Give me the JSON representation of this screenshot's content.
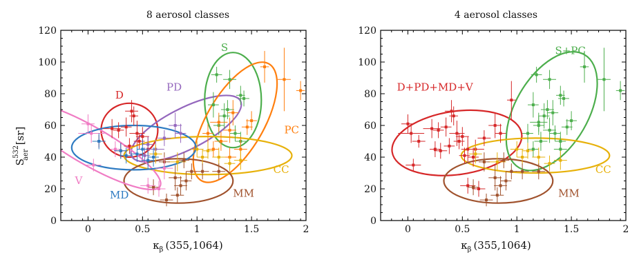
{
  "axis": {
    "ylabel_main": "S",
    "ylabel_sub": "aer",
    "ylabel_sup": "532",
    "ylabel_unit": "[sr]",
    "xlabel_main": "κ",
    "xlabel_sub": "β",
    "xlabel_rest": "(355,1064)"
  },
  "colors": {
    "D": "#d62728",
    "PD": "#9467bd",
    "S": "#4cae4c",
    "PC": "#ff7f0e",
    "CC": "#e7b10a",
    "MM": "#a0522d",
    "V": "#f07cc4",
    "MD": "#2e7bc2"
  },
  "chart_data": [
    {
      "type": "scatter",
      "title": "8 aerosol classes",
      "xlim": [
        -0.25,
        2.0
      ],
      "ylim": [
        0,
        120
      ],
      "xticks": [
        "0",
        "0.5",
        "1",
        "1.5",
        "2"
      ],
      "xtick_values": [
        0,
        0.5,
        1,
        1.5,
        2
      ],
      "yticks": [
        "0",
        "20",
        "40",
        "60",
        "80",
        "100",
        "120"
      ],
      "ytick_values": [
        0,
        20,
        40,
        60,
        80,
        100,
        120
      ],
      "classes": [
        {
          "label": "D",
          "color": "D",
          "label_pos": [
            0.25,
            77
          ],
          "ellipse": {
            "cx": 0.38,
            "cy": 57,
            "rx": 0.26,
            "ry": 17,
            "angle": 0
          },
          "points": [
            [
              0.1,
              50,
              0.06,
              4
            ],
            [
              0.22,
              58,
              0.08,
              6
            ],
            [
              0.28,
              57,
              0.05,
              5
            ],
            [
              0.3,
              44,
              0.06,
              5
            ],
            [
              0.35,
              59,
              0.05,
              6
            ],
            [
              0.4,
              69,
              0.06,
              7
            ],
            [
              0.45,
              55,
              0.07,
              8
            ],
            [
              0.5,
              53,
              0.06,
              6
            ],
            [
              0.47,
              50,
              0.05,
              5
            ],
            [
              0.38,
              47,
              0.05,
              5
            ],
            [
              0.42,
              66,
              0.04,
              6
            ],
            [
              0.55,
              45,
              0.06,
              8
            ]
          ]
        },
        {
          "label": "PD",
          "color": "PD",
          "label_pos": [
            0.72,
            82
          ],
          "ellipse": {
            "cx": 0.9,
            "cy": 58,
            "rx": 0.56,
            "ry": 13,
            "angle": 27
          },
          "points": [
            [
              0.55,
              48,
              0.05,
              5
            ],
            [
              0.62,
              45,
              0.08,
              6
            ],
            [
              0.7,
              52,
              0.06,
              5
            ],
            [
              0.8,
              60,
              0.06,
              8
            ],
            [
              0.85,
              55,
              0.05,
              6
            ],
            [
              0.52,
              41,
              0.05,
              5
            ]
          ]
        },
        {
          "label": "S",
          "color": "S",
          "label_pos": [
            1.22,
            107
          ],
          "ellipse": {
            "cx": 1.33,
            "cy": 76,
            "rx": 0.26,
            "ry": 30,
            "angle": 0
          },
          "points": [
            [
              1.18,
              92,
              0.05,
              5
            ],
            [
              1.3,
              89,
              0.06,
              6
            ],
            [
              1.4,
              79,
              0.04,
              6
            ],
            [
              1.43,
              77,
              0.05,
              5
            ],
            [
              1.15,
              73,
              0.05,
              8
            ],
            [
              1.2,
              60,
              0.05,
              6
            ],
            [
              1.35,
              55,
              0.05,
              5
            ],
            [
              1.25,
              66,
              0.05,
              8
            ],
            [
              1.4,
              50,
              0.05,
              6
            ],
            [
              1.28,
              70,
              0.06,
              6
            ]
          ]
        },
        {
          "label": "PC",
          "color": "PC",
          "label_pos": [
            1.8,
            55
          ],
          "ellipse": {
            "cx": 1.35,
            "cy": 62,
            "rx": 0.62,
            "ry": 18,
            "angle": 60
          },
          "points": [
            [
              1.62,
              97,
              0.04,
              10
            ],
            [
              1.8,
              89,
              0.06,
              20
            ],
            [
              1.95,
              82,
              0.04,
              6
            ],
            [
              1.2,
              62,
              0.08,
              6
            ],
            [
              1.3,
              57,
              0.06,
              8
            ],
            [
              1.1,
              55,
              0.05,
              6
            ],
            [
              1.22,
              50,
              0.06,
              6
            ],
            [
              1.46,
              59,
              0.05,
              5
            ],
            [
              1.4,
              45,
              0.06,
              8
            ],
            [
              1.3,
              40,
              0.06,
              6
            ],
            [
              1.33,
              68,
              0.05,
              8
            ],
            [
              1.15,
              45,
              0.05,
              5
            ],
            [
              1.5,
              63,
              0.05,
              6
            ]
          ]
        },
        {
          "label": "CC",
          "color": "CC",
          "label_pos": [
            1.7,
            30
          ],
          "ellipse": {
            "cx": 1.1,
            "cy": 41,
            "rx": 0.77,
            "ry": 12,
            "angle": 0
          },
          "points": [
            [
              0.62,
              42,
              0.06,
              6
            ],
            [
              0.82,
              37,
              0.08,
              6
            ],
            [
              1.0,
              45,
              0.06,
              5
            ],
            [
              1.1,
              44,
              0.05,
              5
            ],
            [
              1.2,
              40,
              0.06,
              6
            ],
            [
              1.3,
              36,
              0.05,
              5
            ],
            [
              1.4,
              38,
              0.06,
              6
            ],
            [
              1.05,
              40,
              0.05,
              5
            ]
          ]
        },
        {
          "label": "MM",
          "color": "MM",
          "label_pos": [
            1.33,
            15
          ],
          "ellipse": {
            "cx": 0.83,
            "cy": 25,
            "rx": 0.5,
            "ry": 14,
            "angle": 0
          },
          "points": [
            [
              0.6,
              21,
              0.05,
              5
            ],
            [
              0.72,
              13,
              0.06,
              4
            ],
            [
              0.8,
              27,
              0.06,
              8
            ],
            [
              0.85,
              22,
              0.06,
              6
            ],
            [
              0.9,
              25,
              0.05,
              6
            ],
            [
              0.95,
              31,
              0.05,
              5
            ],
            [
              0.82,
              16,
              0.06,
              5
            ],
            [
              0.7,
              37,
              0.05,
              6
            ],
            [
              1.05,
              31,
              0.06,
              5
            ],
            [
              1.2,
              31,
              0.06,
              5
            ],
            [
              0.88,
              38,
              0.05,
              5
            ]
          ]
        },
        {
          "label": "V",
          "color": "V",
          "label_pos": [
            -0.12,
            23
          ],
          "ellipse": {
            "cx": 0.02,
            "cy": 47,
            "rx": 0.74,
            "ry": 12,
            "angle": -30
          },
          "points": [
            [
              0.0,
              61,
              0.06,
              6
            ],
            [
              0.03,
              55,
              0.12,
              6
            ],
            [
              0.05,
              35,
              0.07,
              4
            ],
            [
              0.55,
              22,
              0.07,
              5
            ],
            [
              0.7,
              33,
              0.08,
              7
            ],
            [
              0.65,
              20,
              0.06,
              5
            ],
            [
              0.25,
              45,
              0.05,
              5
            ]
          ]
        },
        {
          "label": "MD",
          "color": "MD",
          "label_pos": [
            0.2,
            14
          ],
          "ellipse": {
            "cx": 0.42,
            "cy": 46,
            "rx": 0.57,
            "ry": 14,
            "angle": 0
          },
          "points": [
            [
              0.1,
              50,
              0.06,
              5
            ],
            [
              0.3,
              44,
              0.06,
              5
            ],
            [
              0.45,
              42,
              0.06,
              5
            ],
            [
              0.5,
              45,
              0.05,
              6
            ],
            [
              0.55,
              38,
              0.06,
              6
            ],
            [
              0.6,
              40,
              0.05,
              6
            ],
            [
              0.35,
              41,
              0.06,
              5
            ]
          ]
        }
      ]
    },
    {
      "type": "scatter",
      "title": "4 aerosol classes",
      "xlim": [
        -0.25,
        2.0
      ],
      "ylim": [
        0,
        120
      ],
      "xticks": [
        "0",
        "0.5",
        "1",
        "1.5",
        "2"
      ],
      "xtick_values": [
        0,
        0.5,
        1,
        1.5,
        2
      ],
      "yticks": [
        "0",
        "20",
        "40",
        "60",
        "80",
        "100",
        "120"
      ],
      "ytick_values": [
        0,
        20,
        40,
        60,
        80,
        100,
        120
      ],
      "classes": [
        {
          "label": "D+PD+MD+V",
          "color": "D",
          "label_pos": [
            -0.1,
            82
          ],
          "ellipse": {
            "cx": 0.45,
            "cy": 49,
            "rx": 0.6,
            "ry": 20,
            "angle": 8
          },
          "points": [
            [
              0.0,
              61,
              0.06,
              6
            ],
            [
              0.03,
              55,
              0.12,
              6
            ],
            [
              0.05,
              35,
              0.07,
              4
            ],
            [
              0.1,
              50,
              0.06,
              4
            ],
            [
              0.22,
              58,
              0.08,
              6
            ],
            [
              0.28,
              57,
              0.05,
              5
            ],
            [
              0.3,
              44,
              0.06,
              5
            ],
            [
              0.35,
              59,
              0.05,
              6
            ],
            [
              0.4,
              69,
              0.06,
              7
            ],
            [
              0.45,
              55,
              0.07,
              8
            ],
            [
              0.5,
              53,
              0.06,
              6
            ],
            [
              0.47,
              50,
              0.05,
              5
            ],
            [
              0.38,
              47,
              0.05,
              5
            ],
            [
              0.42,
              66,
              0.04,
              6
            ],
            [
              0.55,
              45,
              0.06,
              8
            ],
            [
              0.55,
              22,
              0.07,
              5
            ],
            [
              0.62,
              45,
              0.08,
              6
            ],
            [
              0.7,
              52,
              0.06,
              5
            ],
            [
              0.8,
              60,
              0.06,
              8
            ],
            [
              0.85,
              55,
              0.05,
              6
            ],
            [
              0.52,
              41,
              0.05,
              5
            ],
            [
              0.6,
              40,
              0.05,
              6
            ],
            [
              0.25,
              45,
              0.05,
              5
            ],
            [
              0.95,
              76,
              0.04,
              12
            ],
            [
              0.65,
              20,
              0.06,
              5
            ]
          ]
        },
        {
          "label": "S+PC",
          "color": "S",
          "label_pos": [
            1.35,
            105
          ],
          "ellipse": {
            "cx": 1.32,
            "cy": 69,
            "rx": 0.6,
            "ry": 23,
            "angle": 60
          },
          "points": [
            [
              1.18,
              92,
              0.05,
              5
            ],
            [
              1.3,
              89,
              0.06,
              6
            ],
            [
              1.4,
              79,
              0.04,
              6
            ],
            [
              1.43,
              77,
              0.05,
              5
            ],
            [
              1.15,
              73,
              0.05,
              8
            ],
            [
              1.2,
              60,
              0.05,
              6
            ],
            [
              1.35,
              55,
              0.05,
              5
            ],
            [
              1.25,
              66,
              0.05,
              8
            ],
            [
              1.4,
              50,
              0.05,
              6
            ],
            [
              1.28,
              70,
              0.06,
              6
            ],
            [
              1.62,
              97,
              0.04,
              10
            ],
            [
              1.8,
              89,
              0.06,
              20
            ],
            [
              1.95,
              82,
              0.04,
              6
            ],
            [
              1.2,
              62,
              0.08,
              6
            ],
            [
              1.3,
              57,
              0.06,
              8
            ],
            [
              1.1,
              55,
              0.05,
              6
            ],
            [
              1.22,
              50,
              0.06,
              6
            ],
            [
              1.46,
              59,
              0.05,
              5
            ],
            [
              1.4,
              45,
              0.06,
              8
            ],
            [
              1.33,
              68,
              0.05,
              8
            ],
            [
              1.5,
              63,
              0.05,
              6
            ],
            [
              1.15,
              45,
              0.05,
              5
            ]
          ]
        },
        {
          "label": "CC",
          "color": "CC",
          "label_pos": [
            1.72,
            30
          ],
          "ellipse": {
            "cx": 1.17,
            "cy": 41,
            "rx": 0.68,
            "ry": 11,
            "angle": 0
          },
          "points": [
            [
              0.62,
              42,
              0.06,
              6
            ],
            [
              0.82,
              37,
              0.08,
              6
            ],
            [
              1.0,
              45,
              0.06,
              5
            ],
            [
              1.1,
              44,
              0.05,
              5
            ],
            [
              1.2,
              40,
              0.06,
              6
            ],
            [
              1.3,
              36,
              0.05,
              5
            ],
            [
              1.4,
              38,
              0.06,
              6
            ],
            [
              1.05,
              40,
              0.05,
              5
            ]
          ]
        },
        {
          "label": "MM",
          "color": "MM",
          "label_pos": [
            1.38,
            15
          ],
          "ellipse": {
            "cx": 0.83,
            "cy": 25,
            "rx": 0.5,
            "ry": 14,
            "angle": 0
          },
          "points": [
            [
              0.6,
              21,
              0.05,
              5
            ],
            [
              0.72,
              13,
              0.06,
              4
            ],
            [
              0.8,
              27,
              0.06,
              8
            ],
            [
              0.85,
              22,
              0.06,
              6
            ],
            [
              0.9,
              25,
              0.05,
              6
            ],
            [
              0.95,
              31,
              0.05,
              5
            ],
            [
              0.82,
              16,
              0.06,
              5
            ],
            [
              0.7,
              37,
              0.05,
              6
            ],
            [
              1.05,
              31,
              0.06,
              5
            ],
            [
              1.2,
              31,
              0.06,
              5
            ],
            [
              0.88,
              38,
              0.05,
              5
            ]
          ]
        }
      ]
    }
  ]
}
